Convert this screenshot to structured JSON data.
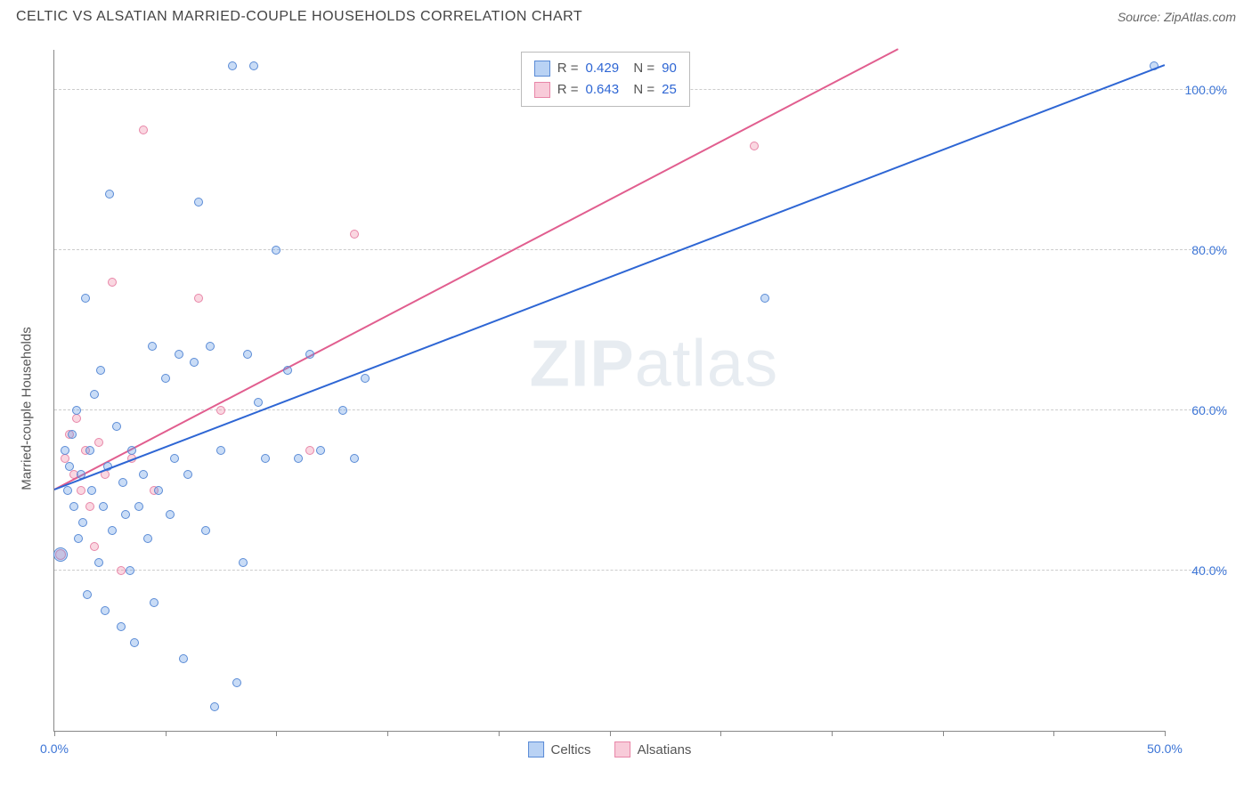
{
  "header": {
    "title": "CELTIC VS ALSATIAN MARRIED-COUPLE HOUSEHOLDS CORRELATION CHART",
    "source": "Source: ZipAtlas.com"
  },
  "chart": {
    "type": "scatter",
    "ylabel": "Married-couple Households",
    "watermark_a": "ZIP",
    "watermark_b": "atlas",
    "background_color": "#ffffff",
    "grid_color": "#cccccc",
    "axis_color": "#888888",
    "xlim": [
      0,
      50
    ],
    "ylim": [
      20,
      105
    ],
    "xticks": [
      0,
      5,
      10,
      15,
      20,
      25,
      30,
      35,
      40,
      45,
      50
    ],
    "xtick_labels": {
      "0": "0.0%",
      "50": "50.0%"
    },
    "yticks": [
      40,
      60,
      80,
      100
    ],
    "ytick_labels": {
      "40": "40.0%",
      "60": "60.0%",
      "80": "80.0%",
      "100": "100.0%"
    },
    "series": {
      "blue": {
        "name": "Celtics",
        "color_fill": "rgba(100,155,230,0.35)",
        "color_stroke": "#5a8bd6",
        "trend_color": "#2e66d4",
        "r": 0.429,
        "n": 90,
        "trend": {
          "x1": 0,
          "y1": 50,
          "x2": 50,
          "y2": 103
        },
        "points": [
          {
            "x": 0.3,
            "y": 42,
            "s": 16
          },
          {
            "x": 0.5,
            "y": 55,
            "s": 10
          },
          {
            "x": 0.6,
            "y": 50,
            "s": 10
          },
          {
            "x": 0.7,
            "y": 53,
            "s": 10
          },
          {
            "x": 0.8,
            "y": 57,
            "s": 10
          },
          {
            "x": 0.9,
            "y": 48,
            "s": 10
          },
          {
            "x": 1.0,
            "y": 60,
            "s": 10
          },
          {
            "x": 1.1,
            "y": 44,
            "s": 10
          },
          {
            "x": 1.2,
            "y": 52,
            "s": 10
          },
          {
            "x": 1.3,
            "y": 46,
            "s": 10
          },
          {
            "x": 1.4,
            "y": 74,
            "s": 10
          },
          {
            "x": 1.5,
            "y": 37,
            "s": 10
          },
          {
            "x": 1.6,
            "y": 55,
            "s": 10
          },
          {
            "x": 1.7,
            "y": 50,
            "s": 10
          },
          {
            "x": 1.8,
            "y": 62,
            "s": 10
          },
          {
            "x": 2.0,
            "y": 41,
            "s": 10
          },
          {
            "x": 2.1,
            "y": 65,
            "s": 10
          },
          {
            "x": 2.2,
            "y": 48,
            "s": 10
          },
          {
            "x": 2.3,
            "y": 35,
            "s": 10
          },
          {
            "x": 2.4,
            "y": 53,
            "s": 10
          },
          {
            "x": 2.5,
            "y": 87,
            "s": 10
          },
          {
            "x": 2.6,
            "y": 45,
            "s": 10
          },
          {
            "x": 2.8,
            "y": 58,
            "s": 10
          },
          {
            "x": 3.0,
            "y": 33,
            "s": 10
          },
          {
            "x": 3.1,
            "y": 51,
            "s": 10
          },
          {
            "x": 3.2,
            "y": 47,
            "s": 10
          },
          {
            "x": 3.4,
            "y": 40,
            "s": 10
          },
          {
            "x": 3.5,
            "y": 55,
            "s": 10
          },
          {
            "x": 3.6,
            "y": 31,
            "s": 10
          },
          {
            "x": 3.8,
            "y": 48,
            "s": 10
          },
          {
            "x": 4.0,
            "y": 52,
            "s": 10
          },
          {
            "x": 4.2,
            "y": 44,
            "s": 10
          },
          {
            "x": 4.4,
            "y": 68,
            "s": 10
          },
          {
            "x": 4.5,
            "y": 36,
            "s": 10
          },
          {
            "x": 4.7,
            "y": 50,
            "s": 10
          },
          {
            "x": 5.0,
            "y": 64,
            "s": 10
          },
          {
            "x": 5.2,
            "y": 47,
            "s": 10
          },
          {
            "x": 5.4,
            "y": 54,
            "s": 10
          },
          {
            "x": 5.6,
            "y": 67,
            "s": 10
          },
          {
            "x": 5.8,
            "y": 29,
            "s": 10
          },
          {
            "x": 6.0,
            "y": 52,
            "s": 10
          },
          {
            "x": 6.3,
            "y": 66,
            "s": 10
          },
          {
            "x": 6.5,
            "y": 86,
            "s": 10
          },
          {
            "x": 6.8,
            "y": 45,
            "s": 10
          },
          {
            "x": 7.0,
            "y": 68,
            "s": 10
          },
          {
            "x": 7.2,
            "y": 23,
            "s": 10
          },
          {
            "x": 7.5,
            "y": 55,
            "s": 10
          },
          {
            "x": 8.0,
            "y": 103,
            "s": 10
          },
          {
            "x": 8.2,
            "y": 26,
            "s": 10
          },
          {
            "x": 8.5,
            "y": 41,
            "s": 10
          },
          {
            "x": 8.7,
            "y": 67,
            "s": 10
          },
          {
            "x": 9.0,
            "y": 103,
            "s": 10
          },
          {
            "x": 9.2,
            "y": 61,
            "s": 10
          },
          {
            "x": 9.5,
            "y": 54,
            "s": 10
          },
          {
            "x": 10.0,
            "y": 80,
            "s": 10
          },
          {
            "x": 10.5,
            "y": 65,
            "s": 10
          },
          {
            "x": 11.0,
            "y": 54,
            "s": 10
          },
          {
            "x": 11.5,
            "y": 67,
            "s": 10
          },
          {
            "x": 12.0,
            "y": 55,
            "s": 10
          },
          {
            "x": 13.0,
            "y": 60,
            "s": 10
          },
          {
            "x": 13.5,
            "y": 54,
            "s": 10
          },
          {
            "x": 14.0,
            "y": 64,
            "s": 10
          },
          {
            "x": 32.0,
            "y": 74,
            "s": 10
          },
          {
            "x": 49.5,
            "y": 103,
            "s": 10
          }
        ]
      },
      "pink": {
        "name": "Alsatians",
        "color_fill": "rgba(240,140,170,0.35)",
        "color_stroke": "#e886a8",
        "trend_color": "#e15e8f",
        "r": 0.643,
        "n": 25,
        "trend": {
          "x1": 0,
          "y1": 50,
          "x2": 38,
          "y2": 105
        },
        "points": [
          {
            "x": 0.3,
            "y": 42,
            "s": 12
          },
          {
            "x": 0.5,
            "y": 54,
            "s": 10
          },
          {
            "x": 0.7,
            "y": 57,
            "s": 10
          },
          {
            "x": 0.9,
            "y": 52,
            "s": 10
          },
          {
            "x": 1.0,
            "y": 59,
            "s": 10
          },
          {
            "x": 1.2,
            "y": 50,
            "s": 10
          },
          {
            "x": 1.4,
            "y": 55,
            "s": 10
          },
          {
            "x": 1.6,
            "y": 48,
            "s": 10
          },
          {
            "x": 1.8,
            "y": 43,
            "s": 10
          },
          {
            "x": 2.0,
            "y": 56,
            "s": 10
          },
          {
            "x": 2.3,
            "y": 52,
            "s": 10
          },
          {
            "x": 2.6,
            "y": 76,
            "s": 10
          },
          {
            "x": 3.0,
            "y": 40,
            "s": 10
          },
          {
            "x": 3.5,
            "y": 54,
            "s": 10
          },
          {
            "x": 4.0,
            "y": 95,
            "s": 10
          },
          {
            "x": 4.5,
            "y": 50,
            "s": 10
          },
          {
            "x": 6.5,
            "y": 74,
            "s": 10
          },
          {
            "x": 7.5,
            "y": 60,
            "s": 10
          },
          {
            "x": 11.5,
            "y": 55,
            "s": 10
          },
          {
            "x": 13.5,
            "y": 82,
            "s": 10
          },
          {
            "x": 31.5,
            "y": 93,
            "s": 10
          }
        ]
      }
    },
    "legend_top": {
      "r_label": "R =",
      "n_label": "N ="
    },
    "legend_bottom": {
      "blue_label": "Celtics",
      "pink_label": "Alsatians"
    }
  }
}
